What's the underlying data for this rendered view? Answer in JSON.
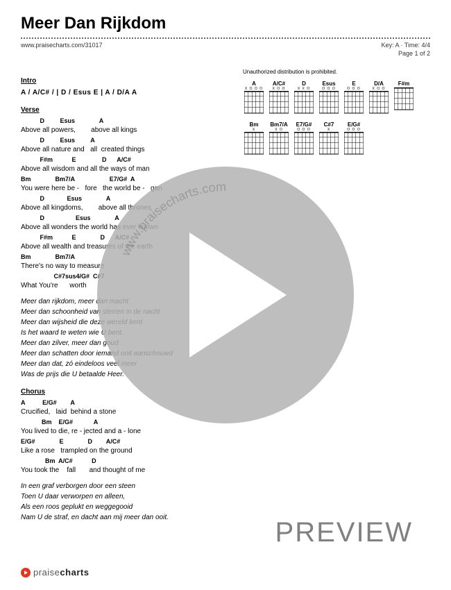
{
  "title": "Meer Dan Rijkdom",
  "url": "www.praisecharts.com/31017",
  "key_line": "Key: A · Time: 4/4",
  "page_line": "Page 1 of 2",
  "warning": "Unauthorized distribution is prohibited.",
  "intro": {
    "label": "Intro",
    "chords": "A  /  A/C#  /  |  D  /  Esus  E  |   A  /  D/A  A"
  },
  "verse": {
    "label": "Verse",
    "lines": [
      {
        "c": "           D         Esus              A",
        "l": "Above all powers,        above all kings"
      },
      {
        "c": "           D         Esus         A",
        "l": "Above all nature and   all  created things"
      },
      {
        "c": "           F#m           E               D      A/C#",
        "l": "Above all wisdom and all the ways of man"
      },
      {
        "c": "Bm              Bm7/A                    E7/G#  A",
        "l": "You were here be -   fore   the world be -   gan"
      },
      {
        "c": "           D             Esus              A",
        "l": "Above all kingdoms,        above all thrones"
      },
      {
        "c": "           D                  Esus              A",
        "l": "Above all wonders the world has ever known"
      },
      {
        "c": "           F#m           E              D      A/C#",
        "l": "Above all wealth and treasures of the earth"
      },
      {
        "c": "Bm              Bm7/A",
        "l": "There's no way to measure"
      },
      {
        "c": "                   C#7sus4/G#  C#7",
        "l": "What You're      worth"
      }
    ]
  },
  "dutch1": [
    "Meer dan rijkdom, meer dan macht",
    "Meer dan schoonheid van sterren in de nacht",
    "Meer dan wijsheid die deze wereld kent",
    "Is het waard te weten wie U bent.",
    "Meer dan zilver, meer dan goud",
    "Meer dan schatten door iemand ooit aanschouwd",
    "Meer dan dat, zó eindeloos veel meer",
    "Was de prijs die U betaalde Heer."
  ],
  "chorus": {
    "label": "Chorus",
    "lines": [
      {
        "c": "A          E/G#        A",
        "l": "Crucified,   laid  behind a stone"
      },
      {
        "c": "            Bm    E/G#            A",
        "l": "You lived to die, re - jected and a - lone"
      },
      {
        "c": "E/G#              E              D        A/C#",
        "l": "Like a rose   trampled on the ground"
      },
      {
        "c": "              Bm  A/C#           D",
        "l": "You took the    fall       and thought of me"
      }
    ]
  },
  "dutch2": [
    "In een graf   verborgen door een steen",
    "Toen U daar   verworpen en alleen,",
    "Als een roos geplukt en weggegooid",
    "Nam U de straf,  en dacht aan mij meer dan ooit."
  ],
  "chord_diagrams_row1": [
    "A",
    "A/C#",
    "D",
    "Esus",
    "E",
    "D/A",
    "F#m"
  ],
  "chord_diagrams_row2": [
    "Bm",
    "Bm7/A",
    "E7/G#",
    "C#7",
    "E/G#"
  ],
  "fret_marks": {
    "A": "X O   O O",
    "A/C#": "X     O O",
    "D": "X X O",
    "Esus": "O   O O",
    "E": "O     O O",
    "D/A": "X O O",
    "F#m": "",
    "Bm": "X",
    "Bm7/A": "X O",
    "E7/G#": "  O O O",
    "C#7": "X",
    "E/G#": "  O   O O"
  },
  "watermark_url": "www.praisecharts.com",
  "preview": "PREVIEW",
  "footer_brand_light": "praise",
  "footer_brand_bold": "charts"
}
